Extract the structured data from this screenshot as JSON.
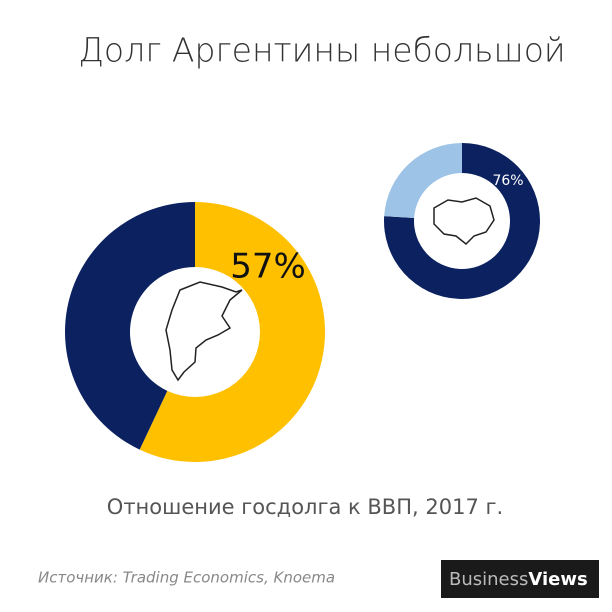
{
  "title": "Долг Аргентины небольшой",
  "subtitle": "Отношение госдолга к ВВП, 2017 г.",
  "source": "Источник: Trading Economics, Knoema",
  "logo": {
    "business": "Business",
    "views": "Views"
  },
  "chart_data": [
    {
      "type": "donut",
      "values": [
        57,
        43
      ],
      "value_labels": [
        "57%",
        null
      ],
      "colors": [
        "#ffc000",
        "#0b2160"
      ]
    },
    {
      "type": "donut",
      "values": [
        76,
        24
      ],
      "value_labels": [
        "76%",
        null
      ],
      "colors": [
        "#0b2160",
        "#9dc3e6"
      ]
    }
  ]
}
